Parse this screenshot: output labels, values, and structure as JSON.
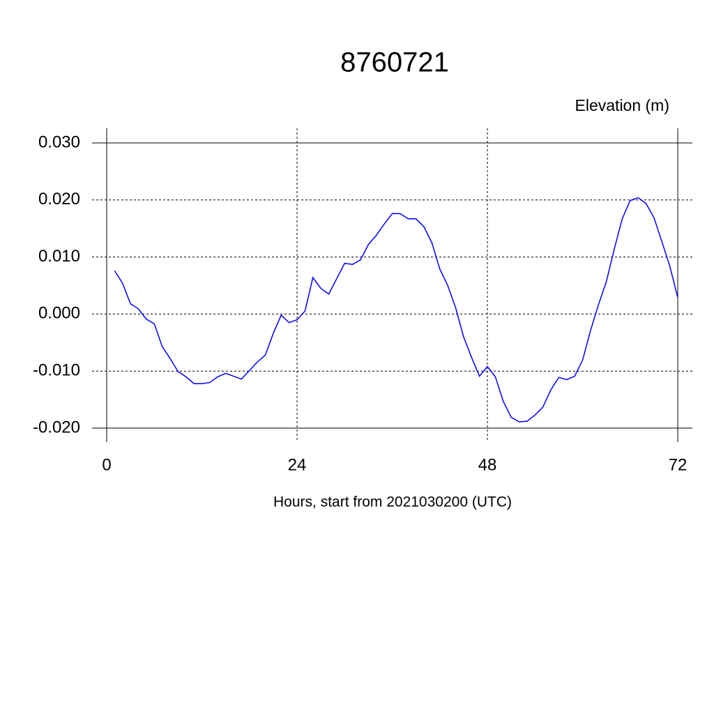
{
  "chart_data": {
    "type": "line",
    "title": "8760721",
    "subtitle": "Elevation (m)",
    "x_label": "Hours, start from 2021030200 (UTC)",
    "x": [
      1,
      2,
      3,
      4,
      5,
      6,
      7,
      8,
      9,
      10,
      11,
      12,
      13,
      14,
      15,
      16,
      17,
      18,
      19,
      20,
      21,
      22,
      23,
      24,
      25,
      26,
      27,
      28,
      29,
      30,
      31,
      32,
      33,
      34,
      35,
      36,
      37,
      38,
      39,
      40,
      41,
      42,
      43,
      44,
      45,
      46,
      47,
      48,
      49,
      50,
      51,
      52,
      53,
      54,
      55,
      56,
      57,
      58,
      59,
      60,
      61,
      62,
      63,
      64,
      65,
      66,
      67,
      68,
      69,
      70,
      71,
      72
    ],
    "series": [
      {
        "color": "#0000ff",
        "values": [
          0.0076,
          0.0054,
          0.0018,
          0.0009,
          -0.0009,
          -0.0017,
          -0.0057,
          -0.0078,
          -0.0101,
          -0.011,
          -0.0122,
          -0.0122,
          -0.012,
          -0.011,
          -0.0104,
          -0.0109,
          -0.0114,
          -0.0099,
          -0.0084,
          -0.0072,
          -0.0034,
          -0.0002,
          -0.0015,
          -0.001,
          0.0005,
          0.0064,
          0.0045,
          0.0035,
          0.0062,
          0.0089,
          0.0087,
          0.0095,
          0.0122,
          0.0138,
          0.0158,
          0.0176,
          0.0176,
          0.0167,
          0.0167,
          0.0153,
          0.0125,
          0.0079,
          0.005,
          0.0011,
          -0.004,
          -0.0076,
          -0.0109,
          -0.0092,
          -0.011,
          -0.0153,
          -0.0181,
          -0.0189,
          -0.0188,
          -0.0177,
          -0.0163,
          -0.0133,
          -0.0111,
          -0.0115,
          -0.0109,
          -0.0081,
          -0.0029,
          0.0016,
          0.0057,
          0.0114,
          0.0167,
          0.0199,
          0.0204,
          0.0194,
          0.0169,
          0.0127,
          0.0084,
          0.0029
        ]
      }
    ],
    "xlim": [
      0,
      72
    ],
    "xticks": [
      0,
      24,
      48,
      72
    ],
    "ylim": [
      -0.02,
      0.03
    ],
    "yticks": [
      {
        "value": -0.02,
        "label": "-0.020"
      },
      {
        "value": -0.01,
        "label": "-0.010"
      },
      {
        "value": 0,
        "label": "0.000"
      },
      {
        "value": 0.01,
        "label": "0.010"
      },
      {
        "value": 0.02,
        "label": "0.020"
      },
      {
        "value": 0.03,
        "label": "0.030"
      }
    ],
    "grid": true
  }
}
